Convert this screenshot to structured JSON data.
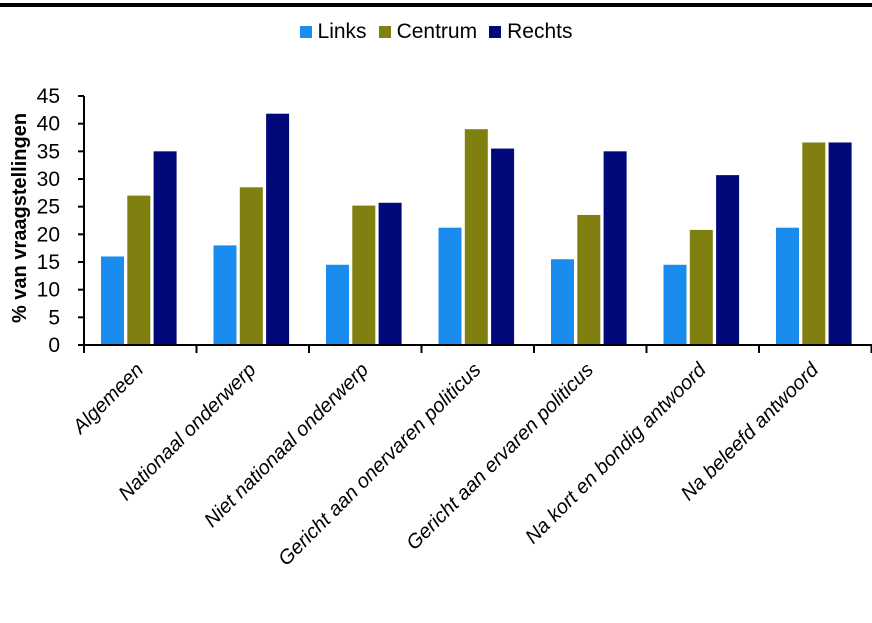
{
  "chart_data": {
    "type": "bar",
    "categories": [
      "Algemeen",
      "Nationaal onderwerp",
      "Niet nationaal onderwerp",
      "Gericht aan onervaren politicus",
      "Gericht aan ervaren politicus",
      "Na kort en bondig antwoord",
      "Na beleefd antwoord"
    ],
    "series": [
      {
        "name": "Links",
        "color": "#1a8cf0",
        "values": [
          16,
          18,
          14.5,
          21.2,
          15.5,
          14.5,
          21.2
        ]
      },
      {
        "name": "Centrum",
        "color": "#808010",
        "values": [
          27,
          28.5,
          25.2,
          39,
          23.5,
          20.8,
          36.6
        ]
      },
      {
        "name": "Rechts",
        "color": "#00087a",
        "values": [
          35,
          41.8,
          25.7,
          35.5,
          35,
          30.7,
          36.6
        ]
      }
    ],
    "ylabel": "% van vraagstellingen",
    "ylim": [
      0,
      45
    ],
    "yticks": [
      "0",
      "5",
      "10",
      "15",
      "20",
      "25",
      "30",
      "35",
      "40",
      "45"
    ],
    "legend_position": "top-center",
    "grid": false
  }
}
